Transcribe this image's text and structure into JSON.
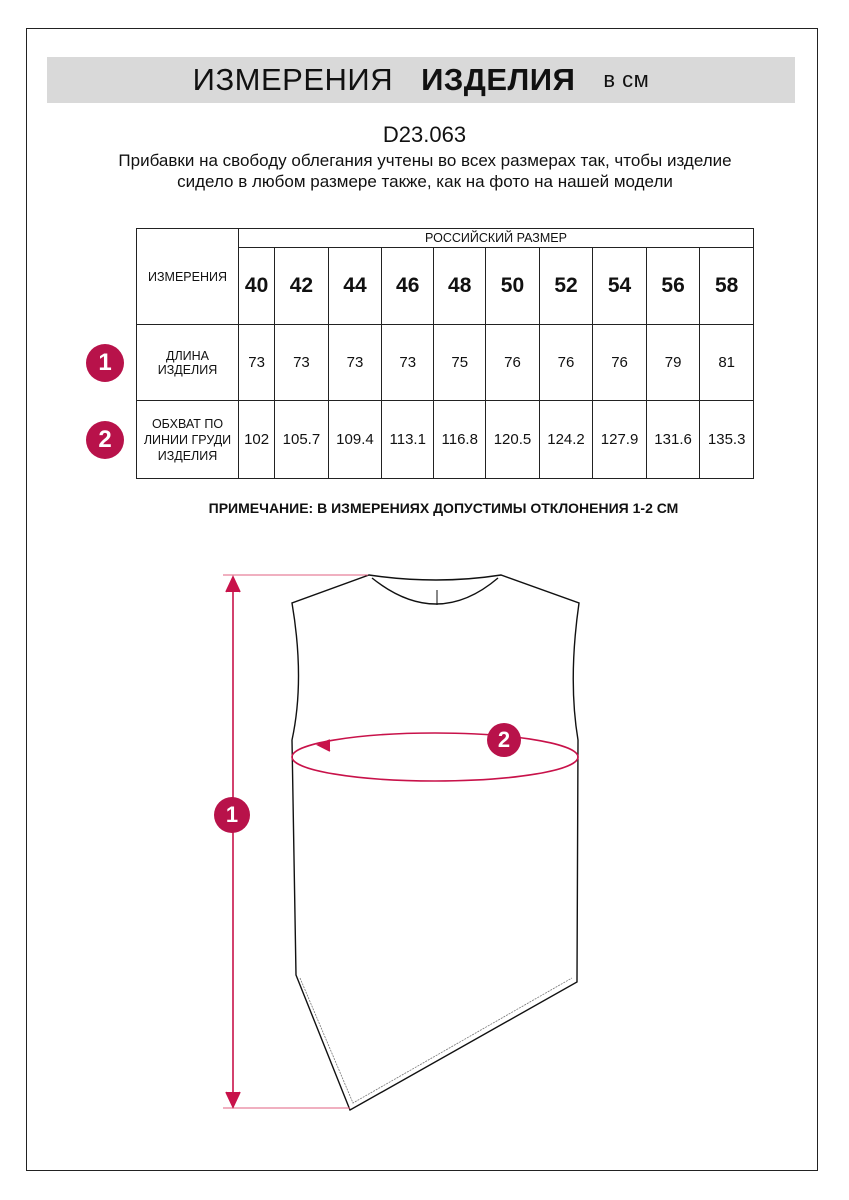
{
  "header": {
    "title_regular": "ИЗМЕРЕНИЯ",
    "title_bold": "ИЗДЕЛИЯ",
    "unit": "в см"
  },
  "product_code": "D23.063",
  "description": "Прибавки на свободу облегания учтены во всех размерах так, чтобы изделие сидело в любом размере также, как на фото на нашей модели",
  "table": {
    "corner_label": "ИЗМЕРЕНИЯ",
    "group_label": "РОССИЙСКИЙ РАЗМЕР",
    "sizes": [
      "40",
      "42",
      "44",
      "46",
      "48",
      "50",
      "52",
      "54",
      "56",
      "58"
    ],
    "rows": [
      {
        "badge": "1",
        "label": "ДЛИНА ИЗДЕЛИЯ",
        "values": [
          "73",
          "73",
          "73",
          "73",
          "75",
          "76",
          "76",
          "76",
          "79",
          "81"
        ]
      },
      {
        "badge": "2",
        "label": "ОБХВАТ ПО ЛИНИИ ГРУДИ ИЗДЕЛИЯ",
        "values": [
          "102",
          "105.7",
          "109.4",
          "113.1",
          "116.8",
          "120.5",
          "124.2",
          "127.9",
          "131.6",
          "135.3"
        ]
      }
    ]
  },
  "note": "ПРИМЕЧАНИЕ: В ИЗМЕРЕНИЯХ ДОПУСТИМЫ ОТКЛОНЕНИЯ 1-2 СМ",
  "diagram": {
    "badge_length": "1",
    "badge_chest": "2"
  },
  "colors": {
    "accent": "#b8124a",
    "banner": "#d9d9d9"
  }
}
